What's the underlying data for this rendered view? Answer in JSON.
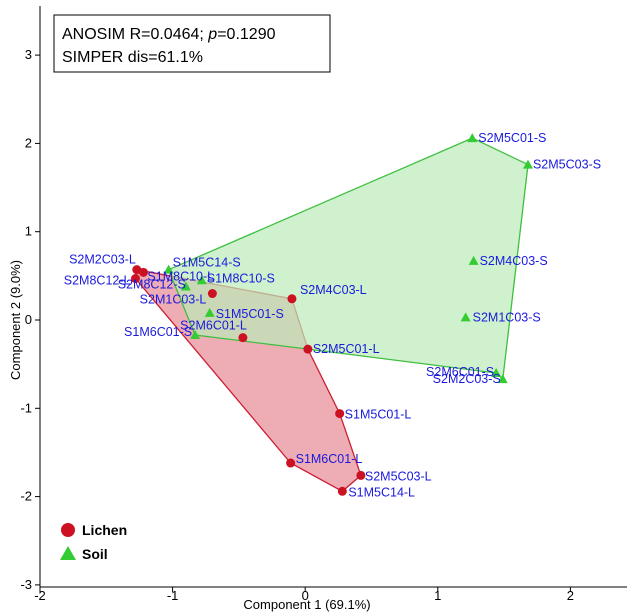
{
  "chart_data": {
    "type": "scatter",
    "xlabel": "Component 1 (69.1%)",
    "ylabel": "Component 2 (9.0%)",
    "xlim": [
      -2,
      2.5
    ],
    "ylim": [
      -3,
      3.5
    ],
    "x_ticks": [
      -2,
      -1,
      0,
      1,
      2
    ],
    "y_ticks": [
      -3,
      -2,
      -1,
      0,
      1,
      2,
      3
    ],
    "grid": false,
    "legend_position": "bottom-left",
    "stats_box": {
      "line1_prefix": "ANOSIM R=0.0464; ",
      "line1_p": "p",
      "line1_suffix": "=0.1290",
      "line2": "SIMPER dis=61.1%"
    },
    "label_color": "#1a1adc",
    "series": [
      {
        "name": "Lichen",
        "marker": "circle",
        "color": "#cc1122",
        "hull_fill": "#e8909c",
        "hull_stroke": "#cc1f33",
        "hull": [
          "S2M2C03-L",
          "S2M4C03-L",
          "S2M5C01-L",
          "S1M5C01-L",
          "S2M5C03-L",
          "S1M5C14-L",
          "S1M6C01-L",
          "S2M8C12-L"
        ],
        "points": [
          {
            "label": "S2M2C03-L",
            "x": -1.27,
            "y": 0.57
          },
          {
            "label": "S2M8C12-L",
            "x": -1.28,
            "y": 0.47
          },
          {
            "label": "S1M8C10-L",
            "x": -1.22,
            "y": 0.54
          },
          {
            "label": "S2M1C03-L",
            "x": -0.7,
            "y": 0.3
          },
          {
            "label": "S2M4C03-L",
            "x": -0.1,
            "y": 0.24
          },
          {
            "label": "S2M6C01-L",
            "x": -0.47,
            "y": -0.2
          },
          {
            "label": "S2M5C01-L",
            "x": 0.02,
            "y": -0.33
          },
          {
            "label": "S1M5C01-L",
            "x": 0.26,
            "y": -1.06
          },
          {
            "label": "S1M6C01-L",
            "x": -0.11,
            "y": -1.62
          },
          {
            "label": "S2M5C03-L",
            "x": 0.42,
            "y": -1.76
          },
          {
            "label": "S1M5C14-L",
            "x": 0.28,
            "y": -1.94
          }
        ]
      },
      {
        "name": "Soil",
        "marker": "triangle",
        "color": "#33cc33",
        "hull_fill": "#bcebb8",
        "hull_stroke": "#3fbf3f",
        "hull": [
          "S1M5C14-S",
          "S2M5C01-S",
          "S2M5C03-S",
          "S2M2C03-S",
          "S2M6C01-S",
          "S2M5C01-L@",
          "S1M6C01-S"
        ],
        "points": [
          {
            "label": "S1M5C14-S",
            "x": -1.03,
            "y": 0.57
          },
          {
            "label": "S1M8C10-S",
            "x": -0.78,
            "y": 0.45
          },
          {
            "label": "S2M8C12-S",
            "x": -0.9,
            "y": 0.38
          },
          {
            "label": "S1M5C01-S",
            "x": -0.72,
            "y": 0.08
          },
          {
            "label": "S1M6C01-S",
            "x": -0.83,
            "y": -0.17
          },
          {
            "label": "S2M5C01-S",
            "x": 1.26,
            "y": 2.06
          },
          {
            "label": "S2M5C03-S",
            "x": 1.68,
            "y": 1.76
          },
          {
            "label": "S2M4C03-S",
            "x": 1.27,
            "y": 0.67
          },
          {
            "label": "S2M1C03-S",
            "x": 1.21,
            "y": 0.03
          },
          {
            "label": "S2M6C01-S",
            "x": 1.44,
            "y": -0.6
          },
          {
            "label": "S2M2C03-S",
            "x": 1.49,
            "y": -0.67
          }
        ]
      }
    ]
  }
}
